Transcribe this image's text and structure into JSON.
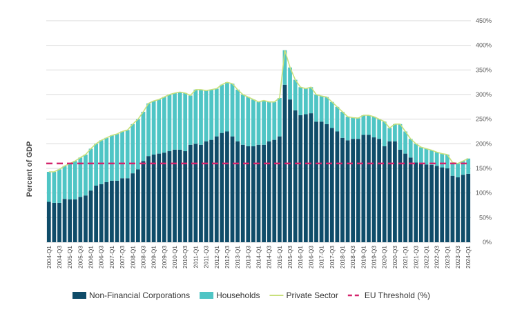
{
  "chart_data": {
    "type": "stacked-bar-line",
    "y_label": "Percent of GDP",
    "categories": [
      "2004-Q1",
      null,
      "2004-Q3",
      null,
      "2005-Q1",
      null,
      "2005-Q3",
      null,
      "2006-Q1",
      null,
      "2006-Q3",
      null,
      "2007-Q1",
      null,
      "2007-Q3",
      null,
      "2008-Q1",
      null,
      "2008-Q3",
      null,
      "2009-Q1",
      null,
      "2009-Q3",
      null,
      "2010-Q1",
      null,
      "2010-Q3",
      null,
      "2011-Q1",
      null,
      "2011-Q3",
      null,
      "2012-Q1",
      null,
      "2012-Q3",
      null,
      "2013-Q1",
      null,
      "2013-Q3",
      null,
      "2014-Q1",
      null,
      "2014-Q3",
      null,
      "2015-Q1",
      null,
      "2015-Q3",
      null,
      "2016-Q1",
      null,
      "2016-Q3",
      null,
      "2017-Q1",
      null,
      "2017-Q3",
      null,
      "2018-Q1",
      null,
      "2018-Q3",
      null,
      "2019-Q1",
      null,
      "2019-Q3",
      null,
      "2020-Q1",
      null,
      "2020-Q3",
      null,
      "2021-Q1",
      null,
      "2021-Q3",
      null,
      "2022-Q1",
      null,
      "2022-Q3",
      null,
      "2023-Q1",
      null,
      "2023-Q3",
      null,
      "2024-Q1"
    ],
    "series": [
      {
        "name": "Non-Financial Corporations",
        "kind": "bar",
        "color": "#0f4c69",
        "values": [
          82,
          80,
          80,
          88,
          87,
          87,
          92,
          95,
          105,
          115,
          118,
          122,
          125,
          125,
          130,
          130,
          140,
          148,
          165,
          175,
          178,
          180,
          182,
          185,
          188,
          188,
          185,
          198,
          200,
          198,
          205,
          208,
          215,
          222,
          225,
          215,
          205,
          198,
          195,
          195,
          198,
          198,
          205,
          208,
          215,
          320,
          290,
          268,
          258,
          260,
          262,
          245,
          245,
          240,
          232,
          225,
          212,
          207,
          210,
          210,
          218,
          218,
          213,
          210,
          195,
          205,
          205,
          188,
          180,
          172,
          162,
          160,
          158,
          157,
          155,
          152,
          150,
          135,
          132,
          137,
          139
        ]
      },
      {
        "name": "Households",
        "kind": "bar",
        "color": "#4fc5c5",
        "values": [
          61,
          63,
          68,
          67,
          73,
          78,
          80,
          83,
          85,
          85,
          89,
          90,
          92,
          95,
          95,
          98,
          100,
          102,
          100,
          107,
          109,
          110,
          113,
          115,
          115,
          117,
          118,
          100,
          110,
          112,
          103,
          102,
          97,
          98,
          100,
          107,
          105,
          102,
          100,
          95,
          87,
          90,
          80,
          77,
          78,
          70,
          65,
          62,
          57,
          52,
          53,
          55,
          52,
          55,
          53,
          50,
          53,
          48,
          43,
          42,
          40,
          40,
          42,
          40,
          50,
          27,
          35,
          52,
          45,
          38,
          38,
          33,
          32,
          30,
          28,
          28,
          28,
          27,
          28,
          28,
          31
        ]
      },
      {
        "name": "Private Sector",
        "kind": "line",
        "color": "#c8e07c",
        "values": [
          143,
          143,
          148,
          155,
          160,
          165,
          172,
          178,
          190,
          200,
          207,
          212,
          217,
          220,
          225,
          228,
          240,
          250,
          265,
          282,
          287,
          290,
          295,
          300,
          303,
          305,
          303,
          298,
          310,
          310,
          308,
          310,
          312,
          320,
          325,
          322,
          310,
          300,
          295,
          290,
          285,
          288,
          285,
          285,
          293,
          390,
          355,
          330,
          315,
          312,
          315,
          300,
          297,
          295,
          285,
          275,
          265,
          255,
          253,
          252,
          258,
          258,
          255,
          250,
          245,
          232,
          240,
          240,
          225,
          210,
          200,
          193,
          190,
          187,
          183,
          180,
          178,
          162,
          160,
          165,
          170
        ]
      },
      {
        "name": "EU Threshold (%)",
        "kind": "threshold",
        "color": "#d4246c",
        "value": 160
      }
    ],
    "ylim": [
      0,
      450
    ],
    "yticks": [
      {
        "value": 0,
        "label": "0%"
      },
      {
        "value": 50,
        "label": "50%"
      },
      {
        "value": 100,
        "label": "100%"
      },
      {
        "value": 150,
        "label": "150%"
      },
      {
        "value": 200,
        "label": "200%"
      },
      {
        "value": 250,
        "label": "250%"
      },
      {
        "value": 300,
        "label": "300%"
      },
      {
        "value": 350,
        "label": "350%"
      },
      {
        "value": 400,
        "label": "400%"
      },
      {
        "value": 450,
        "label": "450%"
      }
    ],
    "grid": true,
    "legend": "bottom"
  }
}
